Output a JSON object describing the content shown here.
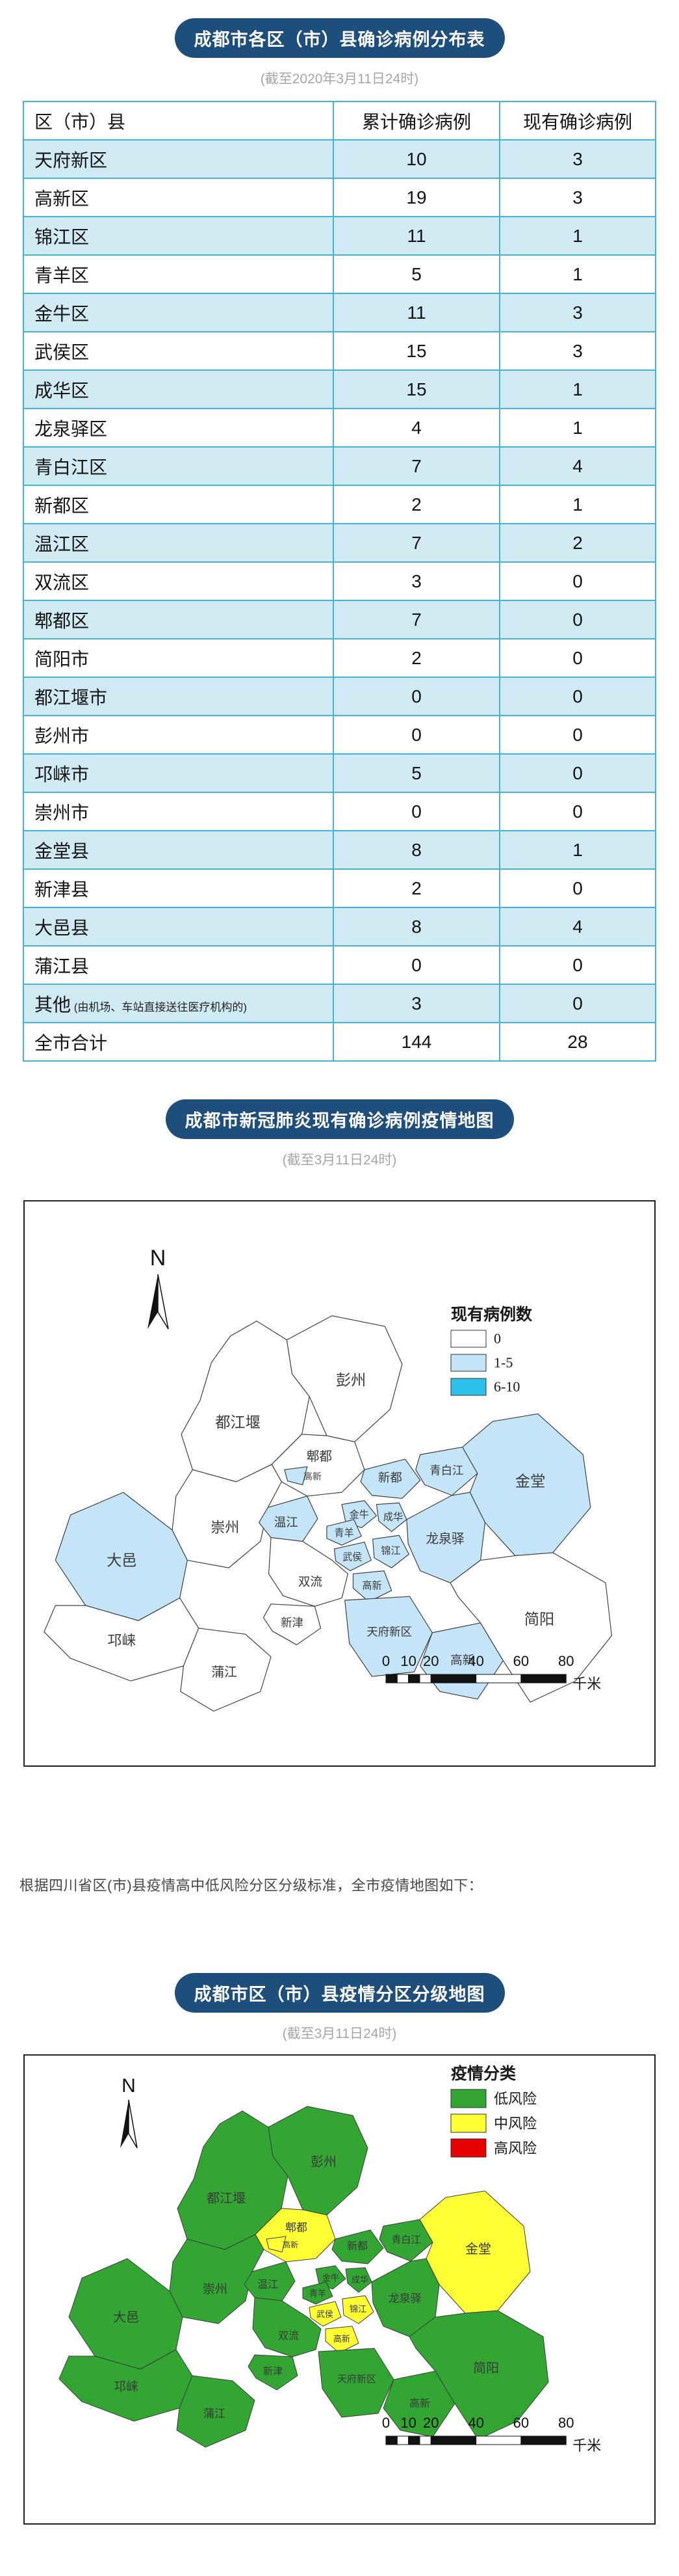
{
  "colors": {
    "badge_bg": "#1e4f7c",
    "table_border": "#43b5d2",
    "table_row_alt": "#d0eaf4",
    "case_0": "#ffffff",
    "case_1_5": "#c3e5f7",
    "case_6_10": "#2ac0ea",
    "risk_low": "#32a532",
    "risk_mid": "#ffff33",
    "risk_high": "#e60000"
  },
  "section1": {
    "badge": "成都市各区（市）县确诊病例分布表",
    "subtitle": "(截至2020年3月11日24时)"
  },
  "table": {
    "headers": [
      "区（市）县",
      "累计确诊病例",
      "现有确诊病例"
    ],
    "rows": [
      {
        "name": "天府新区",
        "note": "",
        "cumulative": "10",
        "current": "3"
      },
      {
        "name": "高新区",
        "note": "",
        "cumulative": "19",
        "current": "3"
      },
      {
        "name": "锦江区",
        "note": "",
        "cumulative": "11",
        "current": "1"
      },
      {
        "name": "青羊区",
        "note": "",
        "cumulative": "5",
        "current": "1"
      },
      {
        "name": "金牛区",
        "note": "",
        "cumulative": "11",
        "current": "3"
      },
      {
        "name": "武侯区",
        "note": "",
        "cumulative": "15",
        "current": "3"
      },
      {
        "name": "成华区",
        "note": "",
        "cumulative": "15",
        "current": "1"
      },
      {
        "name": "龙泉驿区",
        "note": "",
        "cumulative": "4",
        "current": "1"
      },
      {
        "name": "青白江区",
        "note": "",
        "cumulative": "7",
        "current": "4"
      },
      {
        "name": "新都区",
        "note": "",
        "cumulative": "2",
        "current": "1"
      },
      {
        "name": "温江区",
        "note": "",
        "cumulative": "7",
        "current": "2"
      },
      {
        "name": "双流区",
        "note": "",
        "cumulative": "3",
        "current": "0"
      },
      {
        "name": "郫都区",
        "note": "",
        "cumulative": "7",
        "current": "0"
      },
      {
        "name": "简阳市",
        "note": "",
        "cumulative": "2",
        "current": "0"
      },
      {
        "name": "都江堰市",
        "note": "",
        "cumulative": "0",
        "current": "0"
      },
      {
        "name": "彭州市",
        "note": "",
        "cumulative": "0",
        "current": "0"
      },
      {
        "name": "邛崃市",
        "note": "",
        "cumulative": "5",
        "current": "0"
      },
      {
        "name": "崇州市",
        "note": "",
        "cumulative": "0",
        "current": "0"
      },
      {
        "name": "金堂县",
        "note": "",
        "cumulative": "8",
        "current": "1"
      },
      {
        "name": "新津县",
        "note": "",
        "cumulative": "2",
        "current": "0"
      },
      {
        "name": "大邑县",
        "note": "",
        "cumulative": "8",
        "current": "4"
      },
      {
        "name": "蒲江县",
        "note": "",
        "cumulative": "0",
        "current": "0"
      },
      {
        "name": "其他",
        "note": "(由机场、车站直接送往医疗机构的)",
        "cumulative": "3",
        "current": "0"
      },
      {
        "name": "全市合计",
        "note": "",
        "cumulative": "144",
        "current": "28"
      }
    ]
  },
  "section2": {
    "badge": "成都市新冠肺炎现有确诊病例疫情地图",
    "subtitle": "(截至3月11日24时)"
  },
  "map1": {
    "legend_title": "现有病例数",
    "legend": [
      {
        "key": "c0",
        "label": "0",
        "color": "#ffffff"
      },
      {
        "key": "c1",
        "label": "1-5",
        "color": "#c3e5f7"
      },
      {
        "key": "c2",
        "label": "6-10",
        "color": "#2ac0ea"
      }
    ],
    "north_label": "N",
    "scale_ticks": [
      "0",
      "10",
      "20",
      "40",
      "60",
      "80"
    ],
    "scale_unit": "千米"
  },
  "paragraph": "根据四川省区(市)县疫情高中低风险分区分级标准，全市疫情地图如下：",
  "section3": {
    "badge": "成都市区（市）县疫情分区分级地图",
    "subtitle": "(截至3月11日24时)"
  },
  "map2": {
    "legend_title": "疫情分类",
    "legend": [
      {
        "key": "low",
        "label": "低风险",
        "color": "#32a532"
      },
      {
        "key": "mid",
        "label": "中风险",
        "color": "#ffff33"
      },
      {
        "key": "high",
        "label": "高风险",
        "color": "#e60000"
      }
    ],
    "north_label": "N",
    "scale_ticks": [
      "0",
      "10",
      "20",
      "40",
      "60",
      "80"
    ],
    "scale_unit": "千米"
  },
  "districts": [
    {
      "id": "djy",
      "label": "都江堰",
      "map1": "c0",
      "map2": "low"
    },
    {
      "id": "pz",
      "label": "彭州",
      "map1": "c0",
      "map2": "low"
    },
    {
      "id": "pd",
      "label": "郫都",
      "map1": "c0",
      "map2": "mid"
    },
    {
      "id": "gxw",
      "label": "高新",
      "map1": "c1",
      "map2": "mid"
    },
    {
      "id": "xd",
      "label": "新都",
      "map1": "c1",
      "map2": "low"
    },
    {
      "id": "qbj",
      "label": "青白江",
      "map1": "c1",
      "map2": "low"
    },
    {
      "id": "jt",
      "label": "金堂",
      "map1": "c1",
      "map2": "mid"
    },
    {
      "id": "cz",
      "label": "崇州",
      "map1": "c0",
      "map2": "low"
    },
    {
      "id": "wj",
      "label": "温江",
      "map1": "c1",
      "map2": "low"
    },
    {
      "id": "dy",
      "label": "大邑",
      "map1": "c1",
      "map2": "low"
    },
    {
      "id": "ql",
      "label": "邛崃",
      "map1": "c0",
      "map2": "low"
    },
    {
      "id": "jn",
      "label": "金牛",
      "map1": "c1",
      "map2": "low"
    },
    {
      "id": "ch",
      "label": "成华",
      "map1": "c1",
      "map2": "low"
    },
    {
      "id": "qy",
      "label": "青羊",
      "map1": "c1",
      "map2": "low"
    },
    {
      "id": "wh",
      "label": "武侯",
      "map1": "c1",
      "map2": "mid"
    },
    {
      "id": "jj",
      "label": "锦江",
      "map1": "c1",
      "map2": "mid"
    },
    {
      "id": "gxn",
      "label": "高新",
      "map1": "c1",
      "map2": "mid"
    },
    {
      "id": "lqy",
      "label": "龙泉驿",
      "map1": "c1",
      "map2": "low"
    },
    {
      "id": "sl",
      "label": "双流",
      "map1": "c0",
      "map2": "low"
    },
    {
      "id": "xj",
      "label": "新津",
      "map1": "c0",
      "map2": "low"
    },
    {
      "id": "pj",
      "label": "蒲江",
      "map1": "c0",
      "map2": "low"
    },
    {
      "id": "tf",
      "label": "天府新区",
      "map1": "c1",
      "map2": "low"
    },
    {
      "id": "gxd",
      "label": "高新",
      "map1": "c1",
      "map2": "low"
    },
    {
      "id": "jy",
      "label": "简阳",
      "map1": "c0",
      "map2": "low"
    }
  ]
}
